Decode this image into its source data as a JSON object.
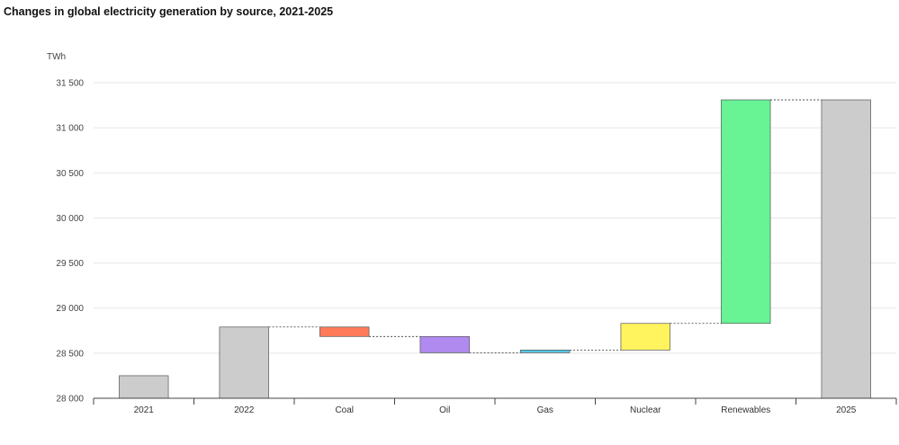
{
  "chart_data": {
    "type": "waterfall",
    "title": "Changes in global electricity generation by source, 2021-2025",
    "y_unit_label": "TWh",
    "ylim": [
      28000,
      31500
    ],
    "y_ticks": [
      28000,
      28500,
      29000,
      29500,
      30000,
      30500,
      31000,
      31500
    ],
    "y_tick_labels": [
      "28 000",
      "28 500",
      "29 000",
      "29 500",
      "30 000",
      "30 500",
      "31 000",
      "31 500"
    ],
    "grid": true,
    "categories": [
      "2021",
      "2022",
      "Coal",
      "Oil",
      "Gas",
      "Nuclear",
      "Renewables",
      "2025"
    ],
    "bars": [
      {
        "label": "2021",
        "kind": "total",
        "start": 28000,
        "end": 28250,
        "color": "#cccccc"
      },
      {
        "label": "2022",
        "kind": "total",
        "start": 28000,
        "end": 28790,
        "color": "#cccccc"
      },
      {
        "label": "Coal",
        "kind": "change",
        "start": 28790,
        "end": 28685,
        "color": "#ff7a59"
      },
      {
        "label": "Oil",
        "kind": "change",
        "start": 28685,
        "end": 28505,
        "color": "#b18aef"
      },
      {
        "label": "Gas",
        "kind": "change",
        "start": 28505,
        "end": 28535,
        "color": "#57c6e6"
      },
      {
        "label": "Nuclear",
        "kind": "change",
        "start": 28535,
        "end": 28830,
        "color": "#fff35e"
      },
      {
        "label": "Renewables",
        "kind": "change",
        "start": 28830,
        "end": 31310,
        "color": "#68f394"
      },
      {
        "label": "2025",
        "kind": "total",
        "start": 28000,
        "end": 31310,
        "color": "#cccccc"
      }
    ],
    "colors": {
      "total": "#cccccc",
      "bar_outline": "#555555",
      "grid": "#e6e6e6",
      "axis": "#444444",
      "connector": "#333333"
    }
  }
}
